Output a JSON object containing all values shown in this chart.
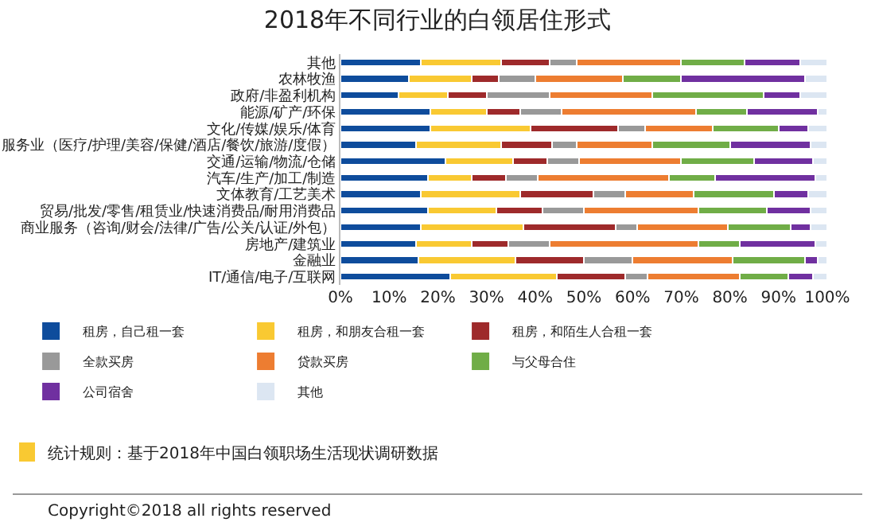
{
  "chart_data": {
    "type": "bar",
    "orientation": "horizontal",
    "stacked": true,
    "title": "2018年不同行业的白领居住形式",
    "categories": [
      "其他",
      "农林牧渔",
      "政府/非盈利机构",
      "能源/矿产/环保",
      "文化/传媒/娱乐/体育",
      "服务业（医疗/护理/美容/保健/酒店/餐饮/旅游/度假）",
      "交通/运输/物流/仓储",
      "汽车/生产/加工/制造",
      "文体教育/工艺美术",
      "贸易/批发/零售/租赁业/快速消费品/耐用消费品",
      "商业服务（咨询/财会/法律/广告/公关/认证/外包）",
      "房地产/建筑业",
      "金融业",
      "IT/通信/电子/互联网"
    ],
    "series": [
      {
        "name": "租房，自己租一套",
        "color": "#0e4c9c",
        "values": [
          16.5,
          14,
          12,
          18.5,
          18.5,
          15.5,
          21.5,
          18,
          16.5,
          18,
          16.5,
          15.5,
          16,
          22.5
        ]
      },
      {
        "name": "租房，和朋友合租一套",
        "color": "#f9c932",
        "values": [
          16.5,
          13,
          10,
          11.5,
          20.5,
          17.5,
          14,
          9,
          20.5,
          14,
          21,
          11.5,
          20,
          22
        ]
      },
      {
        "name": "租房，和陌生人合租一套",
        "color": "#9e2a2b",
        "values": [
          10,
          5.5,
          8,
          7,
          18,
          10.5,
          7,
          7,
          15,
          9.5,
          19,
          7.5,
          14,
          14
        ]
      },
      {
        "name": "全款买房",
        "color": "#999999",
        "values": [
          5.5,
          7.5,
          13,
          8.5,
          5.5,
          5,
          6.5,
          6.5,
          6.5,
          8.5,
          4.5,
          8.5,
          10,
          4.5
        ]
      },
      {
        "name": "贷款买房",
        "color": "#ed7d31",
        "values": [
          21.5,
          18,
          21,
          27.5,
          14,
          15.5,
          21,
          27,
          14,
          23.5,
          18.5,
          30.5,
          20.5,
          19
        ]
      },
      {
        "name": "与父母合住",
        "color": "#70ad47",
        "values": [
          13,
          12,
          23,
          10.5,
          13.5,
          16,
          15,
          9.5,
          16.5,
          14,
          13,
          8.5,
          15,
          10
        ]
      },
      {
        "name": "公司宿舍",
        "color": "#7030a0",
        "values": [
          11.5,
          25.5,
          7.5,
          14.5,
          6,
          16.5,
          12,
          20.5,
          7,
          9,
          4,
          15.5,
          2.5,
          5
        ]
      },
      {
        "name": "其他",
        "color": "#dce6f2",
        "values": [
          5.5,
          4.5,
          5.5,
          2,
          4,
          3.5,
          3,
          2.5,
          4,
          3.5,
          3.5,
          2.5,
          2,
          3
        ]
      }
    ],
    "xlim": [
      0,
      100
    ],
    "xticks": [
      {
        "value": 0,
        "label": "0%"
      },
      {
        "value": 10,
        "label": "10%"
      },
      {
        "value": 20,
        "label": "20%"
      },
      {
        "value": 30,
        "label": "30%"
      },
      {
        "value": 40,
        "label": "40%"
      },
      {
        "value": 50,
        "label": "50%"
      },
      {
        "value": 60,
        "label": "60%"
      },
      {
        "value": 70,
        "label": "70%"
      },
      {
        "value": 80,
        "label": "80%"
      },
      {
        "value": 90,
        "label": "90%"
      },
      {
        "value": 100,
        "label": "100%"
      }
    ],
    "legend": "bottom",
    "grid": false,
    "annotations": [
      "统计规则：基于2018年中国白领职场生活现状调研数据",
      "Copyright©2018 all rights reserved"
    ]
  }
}
